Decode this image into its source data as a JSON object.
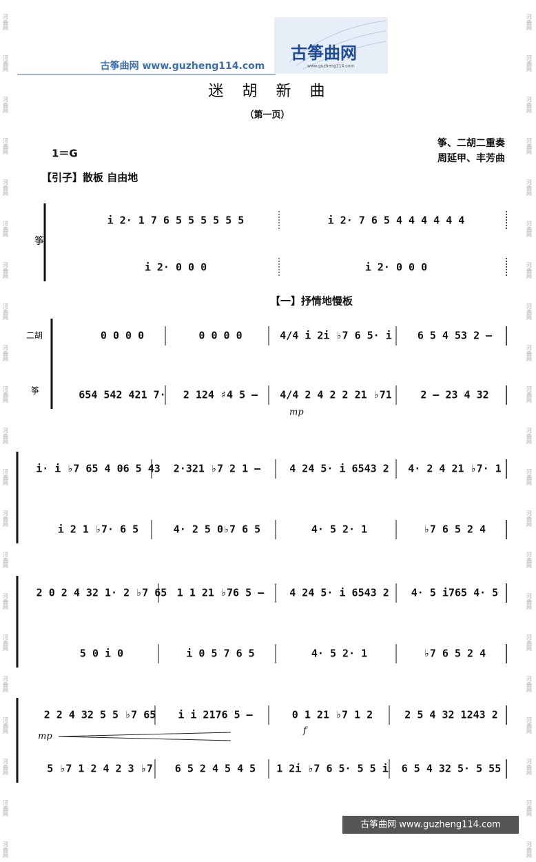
{
  "header": {
    "site_name": "古筝曲网",
    "url": "www.guzheng114.com",
    "logo_text": "古筝曲网",
    "logo_url": "www.guzheng114.com"
  },
  "title": "迷 胡 新 曲",
  "subtitle": "（第一页）",
  "key": "1＝G",
  "credits": [
    "筝、二胡二重奏",
    "周延甲、丰芳曲"
  ],
  "intro_label": "【引子】散板  自由地",
  "section_label": "【一】抒情地慢板",
  "instruments": {
    "erhu": "二胡",
    "zheng": "筝"
  },
  "dynamics": {
    "first": "mp",
    "second": "mp",
    "third": "f"
  },
  "systems": [
    {
      "rows": [
        [
          "i 2·  1 7 6  5 5  5 5 5 5",
          "i 2·  7 6 5  4 4  4 4 4 4"
        ],
        [
          "i 2·   0    0    0",
          "i 2·   0    0    0"
        ]
      ]
    },
    {
      "rows": [
        [
          "0 0 0 0",
          "0 0 0 0",
          "4/4  i 2i ♭7 6  5·  i",
          "6 5 4 53 2  –"
        ],
        [
          "654 542 421 7·",
          "2 124 ♯4  5  –",
          "4/4  2  4 2 2 21 ♭71",
          "2  –  23 4 32"
        ]
      ]
    },
    {
      "rows": [
        [
          "i· i ♭7 65 4 06 5 43",
          "2·321 ♭7 2 1  –",
          "4 24 5· i 6543 2",
          "4· 2 4 21 ♭7·  1"
        ],
        [
          "i   2 1 ♭7·  6 5",
          "4·  2 5 0♭7 6 5",
          "4·  5  2·  1",
          "♭7  6  5  2 4"
        ]
      ]
    },
    {
      "rows": [
        [
          "2 0 2 4 32 1· 2 ♭7 65",
          "1 1  21 ♭76 5  –",
          "4 24 5· i 6543 2",
          "4· 5 i765 4·  5"
        ],
        [
          "5   0   i   0",
          "i  0  5 7 6 5",
          "4·  5  2·  1",
          "♭7  6  5  2 4"
        ]
      ]
    },
    {
      "rows": [
        [
          "2 2 4 32 5 5 ♭7 65",
          "i i 2176 5  –",
          "0  1 21 ♭7 1  2",
          "2 5 4 32 1243 2"
        ],
        [
          "5 ♭7 1 2  4 2  3 ♭7",
          "6 5 2 4  5 4  5",
          "1 2i ♭7 6  5· 5  5 i",
          "6 5 4 32  5· 5 55"
        ]
      ]
    }
  ],
  "footer": "古筝曲网  www.guzheng114.com",
  "margin_mark": "河曲网"
}
